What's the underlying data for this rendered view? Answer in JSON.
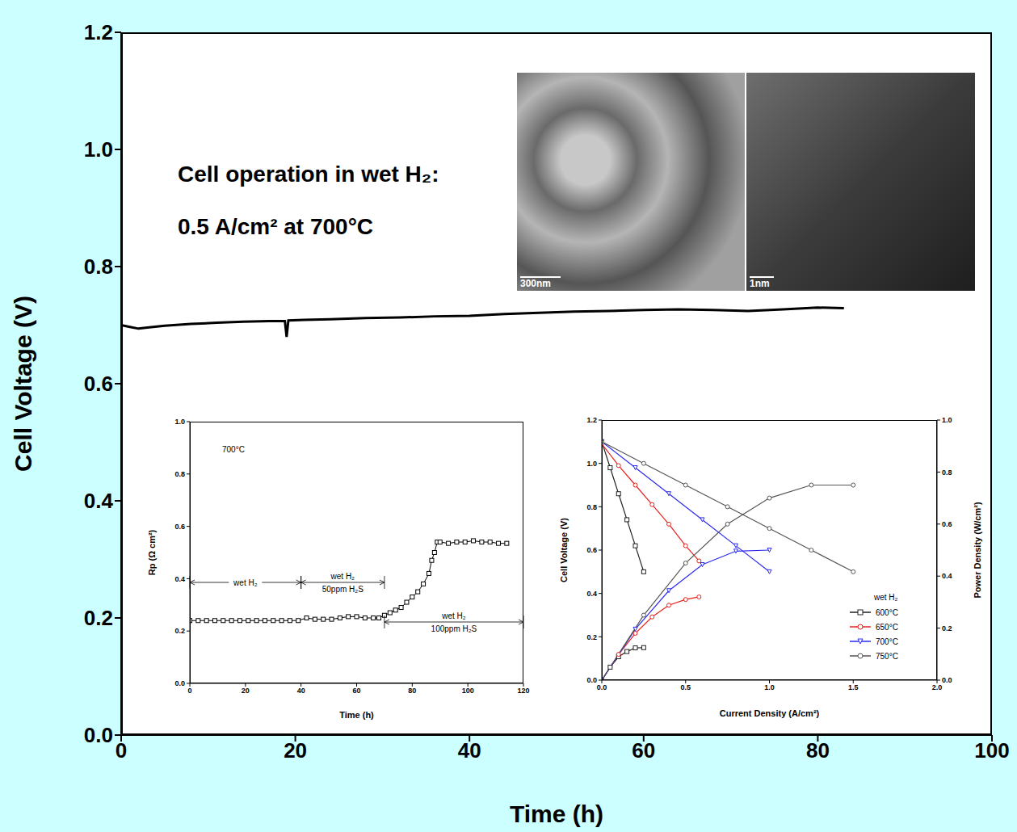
{
  "chart_data": [
    {
      "type": "line",
      "x_label": "Time (h)",
      "y_label": "Cell Voltage (V)",
      "annotations": [
        "Cell operation in wet H₂:",
        "0.5 A/cm² at 700°C"
      ],
      "xlim": [
        0,
        100
      ],
      "xticks": [
        0,
        20,
        40,
        60,
        80,
        100
      ],
      "ylim": [
        0,
        1.2
      ],
      "yticks": [
        {
          "value": 0,
          "label": "0.0"
        },
        0.2,
        0.4,
        0.6,
        0.8,
        {
          "value": 1,
          "label": "1.0"
        },
        1.2
      ],
      "grid": false,
      "color": "#000000",
      "x": [
        0,
        1,
        2,
        3,
        5,
        8,
        11,
        14,
        17,
        18.8,
        19,
        19.2,
        21,
        24,
        28,
        32,
        36,
        40,
        44,
        48,
        52,
        56,
        60,
        64,
        68,
        72,
        76,
        80,
        83
      ],
      "values": [
        0.7,
        0.697,
        0.694,
        0.696,
        0.699,
        0.702,
        0.704,
        0.706,
        0.707,
        0.707,
        0.68,
        0.708,
        0.709,
        0.71,
        0.712,
        0.713,
        0.715,
        0.716,
        0.719,
        0.721,
        0.723,
        0.724,
        0.726,
        0.727,
        0.726,
        0.724,
        0.727,
        0.73,
        0.729
      ]
    },
    {
      "type": "line",
      "x_label": "Time (h)",
      "y_label": "Rp (Ω cm²)",
      "annotations": [
        "700°C"
      ],
      "phases": [
        {
          "label": [
            "wet H₂"
          ],
          "start": 0,
          "end": 40
        },
        {
          "label": [
            "wet H₂",
            "50ppm H₂S"
          ],
          "start": 40,
          "end": 70
        },
        {
          "label": [
            "wet H₂",
            "100ppm H₂S"
          ],
          "start": 70,
          "end": 120
        }
      ],
      "xlim": [
        0,
        120
      ],
      "xticks": [
        0,
        20,
        40,
        60,
        80,
        100,
        120
      ],
      "ylim": [
        0,
        1
      ],
      "yticks": [
        {
          "value": 0,
          "label": "0.0"
        },
        0.2,
        0.4,
        0.6,
        0.8,
        {
          "value": 1,
          "label": "1.0"
        }
      ],
      "grid": false,
      "marker": "square",
      "color": "#000000",
      "x": [
        0,
        3,
        6,
        9,
        12,
        15,
        18,
        21,
        24,
        27,
        30,
        33,
        36,
        39,
        42,
        45,
        48,
        51,
        54,
        57,
        60,
        63,
        66,
        68,
        70,
        72,
        74,
        76,
        78,
        80,
        82,
        84,
        86,
        87,
        88,
        89,
        90,
        93,
        96,
        99,
        102,
        105,
        108,
        111,
        114
      ],
      "values": [
        0.24,
        0.24,
        0.24,
        0.24,
        0.24,
        0.24,
        0.24,
        0.24,
        0.24,
        0.24,
        0.24,
        0.24,
        0.24,
        0.24,
        0.25,
        0.245,
        0.245,
        0.245,
        0.25,
        0.255,
        0.255,
        0.25,
        0.25,
        0.25,
        0.26,
        0.27,
        0.28,
        0.29,
        0.31,
        0.33,
        0.35,
        0.38,
        0.42,
        0.47,
        0.5,
        0.54,
        0.54,
        0.535,
        0.54,
        0.54,
        0.545,
        0.54,
        0.54,
        0.535,
        0.535
      ]
    },
    {
      "type": "line",
      "x_label": "Current Density (A/cm²)",
      "y_label": "Cell Voltage (V)",
      "y2_label": "Power Density (W/cm²)",
      "xlim": [
        0,
        2
      ],
      "xticks": [
        {
          "value": 0,
          "label": "0.0"
        },
        0.5,
        {
          "value": 1,
          "label": "1.0"
        },
        1.5,
        {
          "value": 2,
          "label": "2.0"
        }
      ],
      "ylim": [
        0,
        1.2
      ],
      "yticks": [
        {
          "value": 0,
          "label": "0.0"
        },
        0.2,
        0.4,
        0.6,
        0.8,
        {
          "value": 1,
          "label": "1.0"
        },
        1.2
      ],
      "y2lim": [
        0,
        1
      ],
      "y2ticks": [
        {
          "value": 0,
          "label": "0.0"
        },
        0.2,
        0.4,
        0.6,
        0.8,
        {
          "value": 1,
          "label": "1.0"
        }
      ],
      "grid": false,
      "legend": "bottom-right",
      "legend_title": "wet H₂",
      "series": [
        {
          "name": "600°C",
          "color": "#222222",
          "marker": "square",
          "x": [
            0,
            0.05,
            0.1,
            0.15,
            0.2,
            0.25
          ],
          "values": [
            1.1,
            0.98,
            0.86,
            0.74,
            0.62,
            0.5
          ]
        },
        {
          "name": "600°C",
          "color": "#222222",
          "marker": "square",
          "axis": "y2",
          "x": [
            0,
            0.05,
            0.1,
            0.15,
            0.2,
            0.25
          ],
          "values": [
            0,
            0.05,
            0.09,
            0.11,
            0.124,
            0.125
          ]
        },
        {
          "name": "650°C",
          "color": "#e8201c",
          "marker": "circle",
          "x": [
            0,
            0.1,
            0.2,
            0.3,
            0.4,
            0.5,
            0.58
          ],
          "values": [
            1.09,
            0.99,
            0.9,
            0.81,
            0.72,
            0.62,
            0.55
          ]
        },
        {
          "name": "650°C",
          "color": "#e8201c",
          "marker": "circle",
          "axis": "y2",
          "x": [
            0,
            0.1,
            0.2,
            0.3,
            0.4,
            0.5,
            0.58
          ],
          "values": [
            0,
            0.099,
            0.18,
            0.243,
            0.288,
            0.31,
            0.32
          ]
        },
        {
          "name": "700°C",
          "color": "#2b2bf0",
          "marker": "triangle",
          "x": [
            0,
            0.2,
            0.4,
            0.6,
            0.8,
            1.0
          ],
          "values": [
            1.1,
            0.98,
            0.86,
            0.74,
            0.62,
            0.5
          ]
        },
        {
          "name": "700°C",
          "color": "#2b2bf0",
          "marker": "triangle",
          "axis": "y2",
          "x": [
            0,
            0.2,
            0.4,
            0.6,
            0.8,
            1.0
          ],
          "values": [
            0,
            0.196,
            0.344,
            0.444,
            0.496,
            0.5
          ]
        },
        {
          "name": "750°C",
          "color": "#555555",
          "marker": "circle",
          "x": [
            0,
            0.25,
            0.5,
            0.75,
            1.0,
            1.25,
            1.5
          ],
          "values": [
            1.1,
            1.0,
            0.9,
            0.8,
            0.7,
            0.6,
            0.5
          ]
        },
        {
          "name": "750°C",
          "color": "#555555",
          "marker": "circle",
          "axis": "y2",
          "x": [
            0,
            0.25,
            0.5,
            0.75,
            1.0,
            1.25,
            1.5
          ],
          "values": [
            0,
            0.25,
            0.45,
            0.6,
            0.7,
            0.75,
            0.75
          ]
        }
      ]
    }
  ],
  "images": [
    {
      "scale_bar": "300nm"
    },
    {
      "scale_bar": "1nm"
    }
  ]
}
